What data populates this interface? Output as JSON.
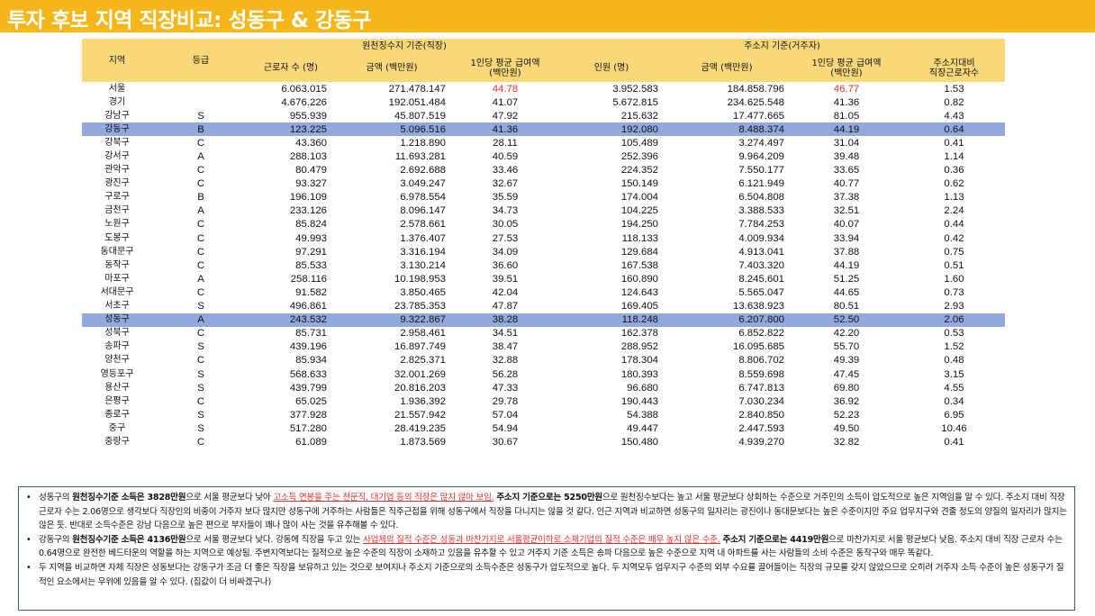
{
  "title": "투자 후보 지역 직장비교: 성동구 & 강동구",
  "headers": {
    "region": "지역",
    "grade": "등급",
    "group_work": "원천징수지 기준(직장)",
    "group_home": "주소지 기준(거주자)",
    "workers": "근로자 수 (명)",
    "amount_work": "금액 (백만원)",
    "avg_pay_work": "1인당 평균 급여액\n(백만원)",
    "persons": "인원 (명)",
    "amount_home": "금액 (백만원)",
    "avg_pay_home": "1인당 평균 급여액\n(백만원)",
    "ratio": "주소지대비\n직장근로자수"
  },
  "rows": [
    {
      "region": "서울",
      "grade": "",
      "workers": "6.063.015",
      "amount_work": "271.478.147",
      "avg_work": "44.78",
      "persons": "3.952.583",
      "amount_home": "184.858.796",
      "avg_home": "46.77",
      "ratio": "1.53",
      "red": true
    },
    {
      "region": "경기",
      "grade": "",
      "workers": "4.676.226",
      "amount_work": "192.051.484",
      "avg_work": "41.07",
      "persons": "5.672.815",
      "amount_home": "234.625.548",
      "avg_home": "41.36",
      "ratio": "0.82"
    },
    {
      "region": "강남구",
      "grade": "S",
      "workers": "955.939",
      "amount_work": "45.807.519",
      "avg_work": "47.92",
      "persons": "215.632",
      "amount_home": "17.477.665",
      "avg_home": "81.05",
      "ratio": "4.43"
    },
    {
      "region": "강동구",
      "grade": "B",
      "workers": "123.225",
      "amount_work": "5.096.516",
      "avg_work": "41.36",
      "persons": "192.080",
      "amount_home": "8.488.374",
      "avg_home": "44.19",
      "ratio": "0.64",
      "highlight": true
    },
    {
      "region": "강북구",
      "grade": "C",
      "workers": "43.360",
      "amount_work": "1.218.890",
      "avg_work": "28.11",
      "persons": "105.489",
      "amount_home": "3.274.497",
      "avg_home": "31.04",
      "ratio": "0.41"
    },
    {
      "region": "강서구",
      "grade": "A",
      "workers": "288.103",
      "amount_work": "11.693.281",
      "avg_work": "40.59",
      "persons": "252.396",
      "amount_home": "9.964.209",
      "avg_home": "39.48",
      "ratio": "1.14"
    },
    {
      "region": "관악구",
      "grade": "C",
      "workers": "80.479",
      "amount_work": "2.692.688",
      "avg_work": "33.46",
      "persons": "224.352",
      "amount_home": "7.550.177",
      "avg_home": "33.65",
      "ratio": "0.36"
    },
    {
      "region": "광진구",
      "grade": "C",
      "workers": "93.327",
      "amount_work": "3.049.247",
      "avg_work": "32.67",
      "persons": "150.149",
      "amount_home": "6.121.949",
      "avg_home": "40.77",
      "ratio": "0.62"
    },
    {
      "region": "구로구",
      "grade": "B",
      "workers": "196.109",
      "amount_work": "6.978.554",
      "avg_work": "35.59",
      "persons": "174.004",
      "amount_home": "6.504.808",
      "avg_home": "37.38",
      "ratio": "1.13"
    },
    {
      "region": "금천구",
      "grade": "A",
      "workers": "233.126",
      "amount_work": "8.096.147",
      "avg_work": "34.73",
      "persons": "104.225",
      "amount_home": "3.388.533",
      "avg_home": "32.51",
      "ratio": "2.24"
    },
    {
      "region": "노원구",
      "grade": "C",
      "workers": "85.824",
      "amount_work": "2.578.661",
      "avg_work": "30.05",
      "persons": "194.250",
      "amount_home": "7.784.253",
      "avg_home": "40.07",
      "ratio": "0.44"
    },
    {
      "region": "도봉구",
      "grade": "C",
      "workers": "49.993",
      "amount_work": "1.376.407",
      "avg_work": "27.53",
      "persons": "118.133",
      "amount_home": "4.009.934",
      "avg_home": "33.94",
      "ratio": "0.42"
    },
    {
      "region": "동대문구",
      "grade": "C",
      "workers": "97.291",
      "amount_work": "3.316.194",
      "avg_work": "34.09",
      "persons": "129.684",
      "amount_home": "4.913.041",
      "avg_home": "37.88",
      "ratio": "0.75"
    },
    {
      "region": "동작구",
      "grade": "C",
      "workers": "85.533",
      "amount_work": "3.130.214",
      "avg_work": "36.60",
      "persons": "167.538",
      "amount_home": "7.403.320",
      "avg_home": "44.19",
      "ratio": "0.51"
    },
    {
      "region": "마포구",
      "grade": "A",
      "workers": "258.116",
      "amount_work": "10.198.953",
      "avg_work": "39.51",
      "persons": "160.890",
      "amount_home": "8.245.601",
      "avg_home": "51.25",
      "ratio": "1.60"
    },
    {
      "region": "서대문구",
      "grade": "C",
      "workers": "91.582",
      "amount_work": "3.850.465",
      "avg_work": "42.04",
      "persons": "124.643",
      "amount_home": "5.565.047",
      "avg_home": "44.65",
      "ratio": "0.73"
    },
    {
      "region": "서초구",
      "grade": "S",
      "workers": "496.861",
      "amount_work": "23.785.353",
      "avg_work": "47.87",
      "persons": "169.405",
      "amount_home": "13.638.923",
      "avg_home": "80.51",
      "ratio": "2.93"
    },
    {
      "region": "성동구",
      "grade": "A",
      "workers": "243.532",
      "amount_work": "9.322.867",
      "avg_work": "38.28",
      "persons": "118.248",
      "amount_home": "6.207.800",
      "avg_home": "52.50",
      "ratio": "2.06",
      "highlight": true
    },
    {
      "region": "성북구",
      "grade": "C",
      "workers": "85.731",
      "amount_work": "2.958.461",
      "avg_work": "34.51",
      "persons": "162.378",
      "amount_home": "6.852.822",
      "avg_home": "42.20",
      "ratio": "0.53"
    },
    {
      "region": "송파구",
      "grade": "S",
      "workers": "439.196",
      "amount_work": "16.897.749",
      "avg_work": "38.47",
      "persons": "288.952",
      "amount_home": "16.095.685",
      "avg_home": "55.70",
      "ratio": "1.52"
    },
    {
      "region": "양천구",
      "grade": "C",
      "workers": "85.934",
      "amount_work": "2.825.371",
      "avg_work": "32.88",
      "persons": "178.304",
      "amount_home": "8.806.702",
      "avg_home": "49.39",
      "ratio": "0.48"
    },
    {
      "region": "영등포구",
      "grade": "S",
      "workers": "568.633",
      "amount_work": "32.001.269",
      "avg_work": "56.28",
      "persons": "180.393",
      "amount_home": "8.559.698",
      "avg_home": "47.45",
      "ratio": "3.15"
    },
    {
      "region": "용산구",
      "grade": "S",
      "workers": "439.799",
      "amount_work": "20.816.203",
      "avg_work": "47.33",
      "persons": "96.680",
      "amount_home": "6.747.813",
      "avg_home": "69.80",
      "ratio": "4.55"
    },
    {
      "region": "은평구",
      "grade": "C",
      "workers": "65.025",
      "amount_work": "1.936.392",
      "avg_work": "29.78",
      "persons": "190.443",
      "amount_home": "7.030.234",
      "avg_home": "36.92",
      "ratio": "0.34"
    },
    {
      "region": "종로구",
      "grade": "S",
      "workers": "377.928",
      "amount_work": "21.557.942",
      "avg_work": "57.04",
      "persons": "54.388",
      "amount_home": "2.840.850",
      "avg_home": "52.23",
      "ratio": "6.95"
    },
    {
      "region": "중구",
      "grade": "S",
      "workers": "517.280",
      "amount_work": "28.419.235",
      "avg_work": "54.94",
      "persons": "49.447",
      "amount_home": "2.447.593",
      "avg_home": "49.50",
      "ratio": "10.46"
    },
    {
      "region": "중랑구",
      "grade": "C",
      "workers": "61.089",
      "amount_work": "1.873.569",
      "avg_work": "30.67",
      "persons": "150.480",
      "amount_home": "4.939.270",
      "avg_home": "32.82",
      "ratio": "0.41"
    }
  ],
  "notes": [
    {
      "bullet": "•",
      "parts": [
        {
          "t": "성동구의 ",
          "s": ""
        },
        {
          "t": "원천징수기준 소득은 3828만원",
          "s": "b"
        },
        {
          "t": "으로 서울 평균보다 낮아 ",
          "s": ""
        },
        {
          "t": "고소득 연봉을 주는 전문직, 대기업 등의 직장은 많지 않아 보임.",
          "s": "u"
        },
        {
          "t": " ",
          "s": ""
        },
        {
          "t": "주소지 기준으로는 5250만원",
          "s": "b"
        },
        {
          "t": "으로 원천징수보다는 높고 서울 평균보다 상회하는 수준으로 거주민의 소득이 압도적으로 높은 지역임을 알 수 있다. 주소지 대비 직장 근로자 수는 2.06명으로 생각보다 직장인의 비중이 거주자 보다 많지만 성동구에 거주하는 사람들은 직주근접을 위해 성동구에서 직장을 다니지는 않을 것 같다. 인근 지역과 비교하면 성동구의 일자리는 광진이나 동대문보다는 높은 수준이지만 주요 업무지구와 견줄 정도의 양질의 일자리가 많지는 않은 듯. 반대로 소득수준은 강남 다음으로 높은 편으로 부자들이 꽤나 많이 사는 것을 유추해볼 수 있다.",
          "s": ""
        }
      ]
    },
    {
      "bullet": "•",
      "parts": [
        {
          "t": "강동구의 ",
          "s": ""
        },
        {
          "t": "원천징수기준 소득은 4136만원",
          "s": "b"
        },
        {
          "t": "으로 서울 평균보다 낮다. 강동에 직장을 두고 있는 ",
          "s": ""
        },
        {
          "t": "사업체의 질적 수준은 성동과 마찬가지로 서울평균이하로 소재기업의 질적 수준은 매우 높지 않은 수준.",
          "s": "u"
        },
        {
          "t": " ",
          "s": ""
        },
        {
          "t": "주소지 기준으로는 4419만원",
          "s": "b"
        },
        {
          "t": "으로 마찬가지로 서울 평균보다 낮음. 주소지 대비 직장 근로자 수는 0.64명으로 완전한 베드타운의 역할을 하는 지역으로 예상됨. 주변지역보다는 질적으로 높은 수준의 직장이 소재하고 있음을 유추할 수 있고 거주지 기준 소득은 송파 다음으로 높은 수준으로 지역 내 아파트를 사는 사람들의 소비 수준은 동작구와 매우 똑같다.",
          "s": ""
        }
      ]
    },
    {
      "bullet": "•",
      "parts": [
        {
          "t": "두 지역을 비교하면 자체 직장은 성동보다는 강동구가 조금 더 좋은 직장을 보유하고 있는 것으로 보여지나 주소지 기준으로의 소득수준은 성동구가 압도적으로 높다. 두 지역모두 업무지구 수준의 외부 수요를 끌어들이는 직장의 규모를 갖지 않았으므로 오히려 거주자 소득 수준이 높은 성동구가 질적인 요소에서는 우위에 있음을 알 수 있다. (집값이 더 비싸겠구나)",
          "s": ""
        }
      ]
    }
  ]
}
